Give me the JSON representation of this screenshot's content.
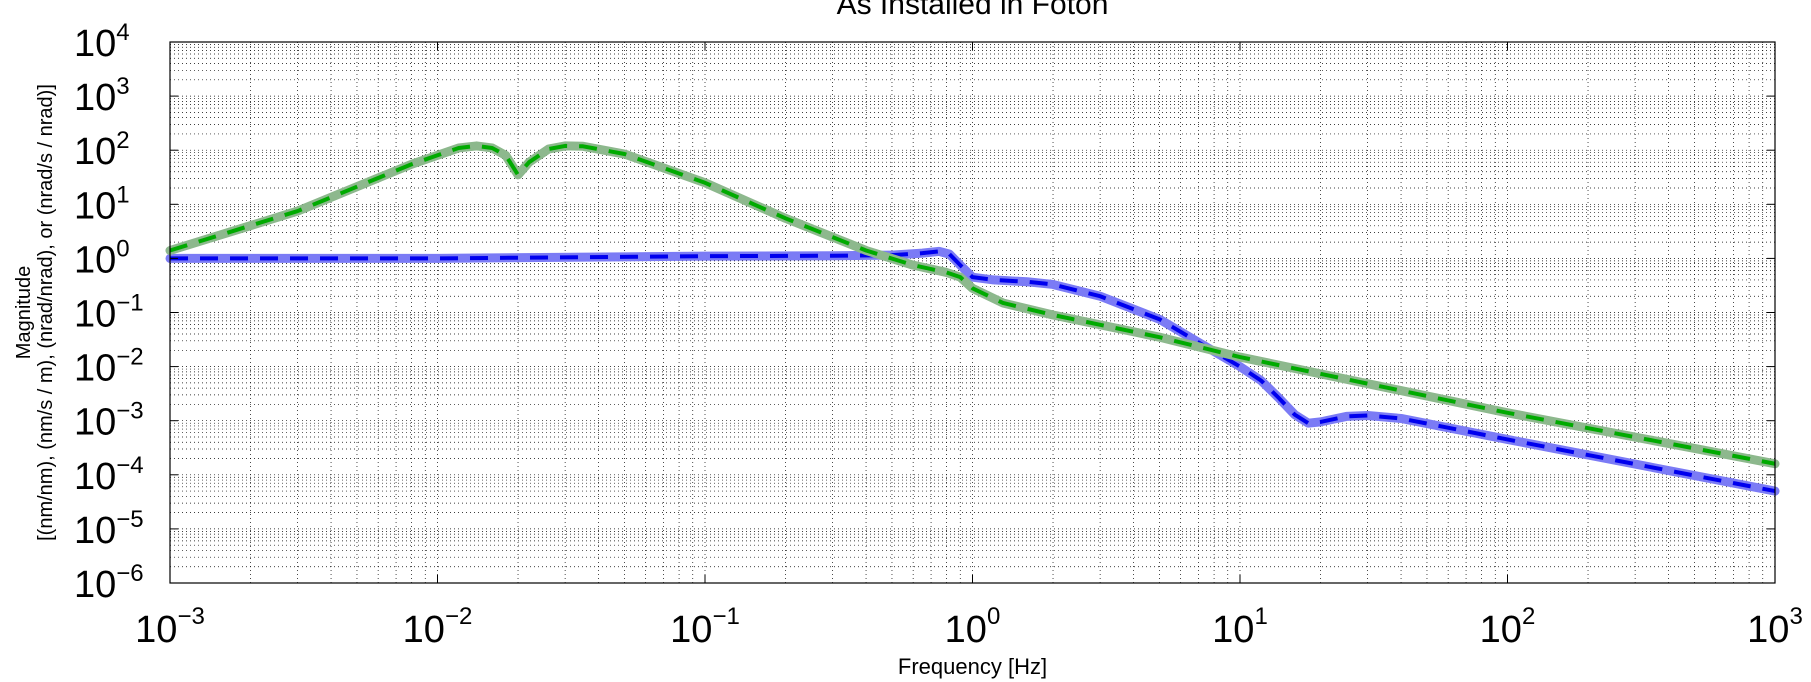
{
  "chart_data": {
    "type": "line",
    "title": "As Installed in Foton",
    "xlabel": "Frequency [Hz]",
    "ylabel_lines": [
      "Magnitude",
      "[(nm/nm), (nm/s / m), (nrad/nrad), or (nrad/s / nrad)]"
    ],
    "x_scale": "log",
    "y_scale": "log",
    "xlim": [
      0.001,
      1000
    ],
    "ylim": [
      1e-06,
      10000
    ],
    "x_ticks": [
      0.001,
      0.01,
      0.1,
      1,
      10,
      100,
      1000
    ],
    "x_tick_labels": [
      {
        "base": "10",
        "exp": "−3"
      },
      {
        "base": "10",
        "exp": "−2"
      },
      {
        "base": "10",
        "exp": "−1"
      },
      {
        "base": "10",
        "exp": "0"
      },
      {
        "base": "10",
        "exp": "1"
      },
      {
        "base": "10",
        "exp": "2"
      },
      {
        "base": "10",
        "exp": "3"
      }
    ],
    "y_ticks": [
      1e-06,
      1e-05,
      0.0001,
      0.001,
      0.01,
      0.1,
      1,
      10,
      100,
      1000,
      10000
    ],
    "y_tick_labels": [
      {
        "base": "10",
        "exp": "−6"
      },
      {
        "base": "10",
        "exp": "−5"
      },
      {
        "base": "10",
        "exp": "−4"
      },
      {
        "base": "10",
        "exp": "−3"
      },
      {
        "base": "10",
        "exp": "−2"
      },
      {
        "base": "10",
        "exp": "−1"
      },
      {
        "base": "10",
        "exp": "0"
      },
      {
        "base": "10",
        "exp": "1"
      },
      {
        "base": "10",
        "exp": "2"
      },
      {
        "base": "10",
        "exp": "3"
      },
      {
        "base": "10",
        "exp": "4"
      }
    ],
    "grid": true,
    "legend": "none",
    "series": [
      {
        "color": "#7b7bf5",
        "dash_color": "#0000ee",
        "points": [
          [
            0.001,
            1.0
          ],
          [
            0.01,
            1.0
          ],
          [
            0.1,
            1.1
          ],
          [
            0.3,
            1.12
          ],
          [
            0.5,
            1.15
          ],
          [
            0.65,
            1.25
          ],
          [
            0.75,
            1.35
          ],
          [
            0.82,
            1.2
          ],
          [
            0.9,
            0.75
          ],
          [
            1.0,
            0.45
          ],
          [
            1.2,
            0.4
          ],
          [
            1.6,
            0.37
          ],
          [
            2.0,
            0.33
          ],
          [
            3.0,
            0.2
          ],
          [
            5.0,
            0.075
          ],
          [
            7.0,
            0.028
          ],
          [
            10.0,
            0.01
          ],
          [
            12.0,
            0.0055
          ],
          [
            14.0,
            0.0026
          ],
          [
            16.0,
            0.0013
          ],
          [
            18.0,
            0.0009
          ],
          [
            20.0,
            0.00095
          ],
          [
            25.0,
            0.0012
          ],
          [
            30.0,
            0.00125
          ],
          [
            40.0,
            0.0011
          ],
          [
            100.0,
            0.00045
          ],
          [
            1000.0,
            5e-05
          ]
        ]
      },
      {
        "color": "#8db88d",
        "dash_color": "#00aa00",
        "points": [
          [
            0.001,
            1.4
          ],
          [
            0.003,
            7.5
          ],
          [
            0.008,
            55
          ],
          [
            0.012,
            110
          ],
          [
            0.014,
            120
          ],
          [
            0.016,
            110
          ],
          [
            0.018,
            80
          ],
          [
            0.02,
            35
          ],
          [
            0.022,
            60
          ],
          [
            0.026,
            105
          ],
          [
            0.03,
            120
          ],
          [
            0.035,
            118
          ],
          [
            0.05,
            85
          ],
          [
            0.1,
            25
          ],
          [
            0.2,
            5.5
          ],
          [
            0.4,
            1.4
          ],
          [
            0.6,
            0.75
          ],
          [
            0.8,
            0.55
          ],
          [
            0.9,
            0.45
          ],
          [
            1.0,
            0.28
          ],
          [
            1.3,
            0.15
          ],
          [
            2.0,
            0.09
          ],
          [
            5.0,
            0.035
          ],
          [
            10.0,
            0.015
          ],
          [
            100.0,
            0.0014
          ],
          [
            1000.0,
            0.00016
          ]
        ]
      }
    ]
  }
}
